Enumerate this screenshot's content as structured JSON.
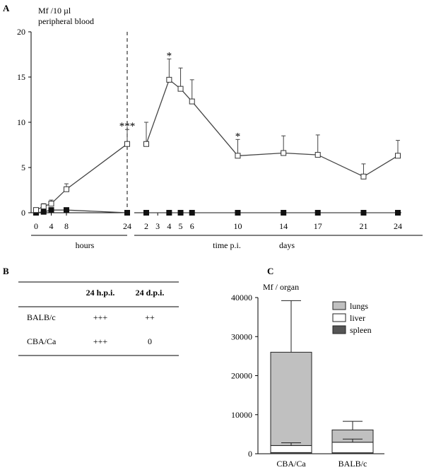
{
  "panels": {
    "a": "A",
    "b": "B",
    "c": "C"
  },
  "chart_data": [
    {
      "type": "line",
      "ylabel_line1": "Mf /10 µl",
      "ylabel_line2": "peripheral blood",
      "ylim": [
        0,
        20
      ],
      "yticks": [
        "0",
        "5",
        "10",
        "15",
        "20"
      ],
      "hours_ticks": [
        "0",
        "4",
        "8",
        "24"
      ],
      "days_ticks": [
        "2",
        "3",
        "4",
        "5",
        "6",
        "10",
        "14",
        "17",
        "21",
        "24"
      ],
      "xlabel_hours": "hours",
      "xlabel_center": "time p.i.",
      "xlabel_days": "days",
      "grid": false,
      "series": [
        {
          "marker": "open-square",
          "hours": {
            "x": [
              0,
              2,
              4,
              8,
              24
            ],
            "y": [
              0.3,
              0.7,
              1.0,
              2.6,
              7.6
            ],
            "err": [
              0.0,
              0.3,
              0.4,
              0.6,
              1.6
            ]
          },
          "days": {
            "x": [
              2,
              4,
              5,
              6,
              10,
              14,
              17,
              21,
              24
            ],
            "y": [
              7.6,
              14.7,
              13.7,
              12.3,
              6.3,
              6.6,
              6.4,
              4.0,
              6.3
            ],
            "err": [
              2.4,
              2.3,
              2.3,
              2.4,
              1.8,
              1.9,
              2.2,
              1.4,
              1.7
            ]
          }
        },
        {
          "marker": "filled-square",
          "hours": {
            "x": [
              0,
              2,
              4,
              8,
              24
            ],
            "y": [
              0.0,
              0.1,
              0.3,
              0.3,
              0.0
            ],
            "err": [
              0,
              0,
              0,
              0,
              0
            ]
          },
          "days": {
            "x": [
              2,
              4,
              5,
              6,
              10,
              14,
              17,
              21,
              24
            ],
            "y": [
              0,
              0,
              0,
              0,
              0,
              0,
              0,
              0,
              0
            ],
            "err": [
              0,
              0,
              0,
              0,
              0,
              0,
              0,
              0,
              0
            ]
          }
        }
      ],
      "annotations": [
        {
          "label": "***",
          "section": "hours",
          "x": 24,
          "y": 9.2
        },
        {
          "label": "*",
          "section": "days",
          "x": 4,
          "y": 17.0
        },
        {
          "label": "*",
          "section": "days",
          "x": 10,
          "y": 8.1
        }
      ]
    },
    {
      "type": "table",
      "columns": [
        "",
        "24 h.p.i.",
        "24 d.p.i."
      ],
      "rows": [
        [
          "BALB/c",
          "+++",
          "++"
        ],
        [
          "CBA/Ca",
          "+++",
          "0"
        ]
      ]
    },
    {
      "type": "bar",
      "stacked": true,
      "ylabel": "Mf / organ",
      "ylim": [
        0,
        40000
      ],
      "yticks": [
        "0",
        "10000",
        "20000",
        "30000",
        "40000"
      ],
      "categories": [
        "CBA/Ca",
        "BALB/c"
      ],
      "legend_position": "top-right",
      "series": [
        {
          "name": "spleen",
          "color": "#555555",
          "values": [
            300,
            250
          ],
          "err": [
            0,
            0
          ]
        },
        {
          "name": "liver",
          "color": "#ffffff",
          "values": [
            1800,
            2700
          ],
          "err": [
            700,
            800
          ]
        },
        {
          "name": "lungs",
          "color": "#c0c0c0",
          "values": [
            23900,
            3150
          ],
          "err": [
            13200,
            2200
          ]
        }
      ]
    }
  ]
}
